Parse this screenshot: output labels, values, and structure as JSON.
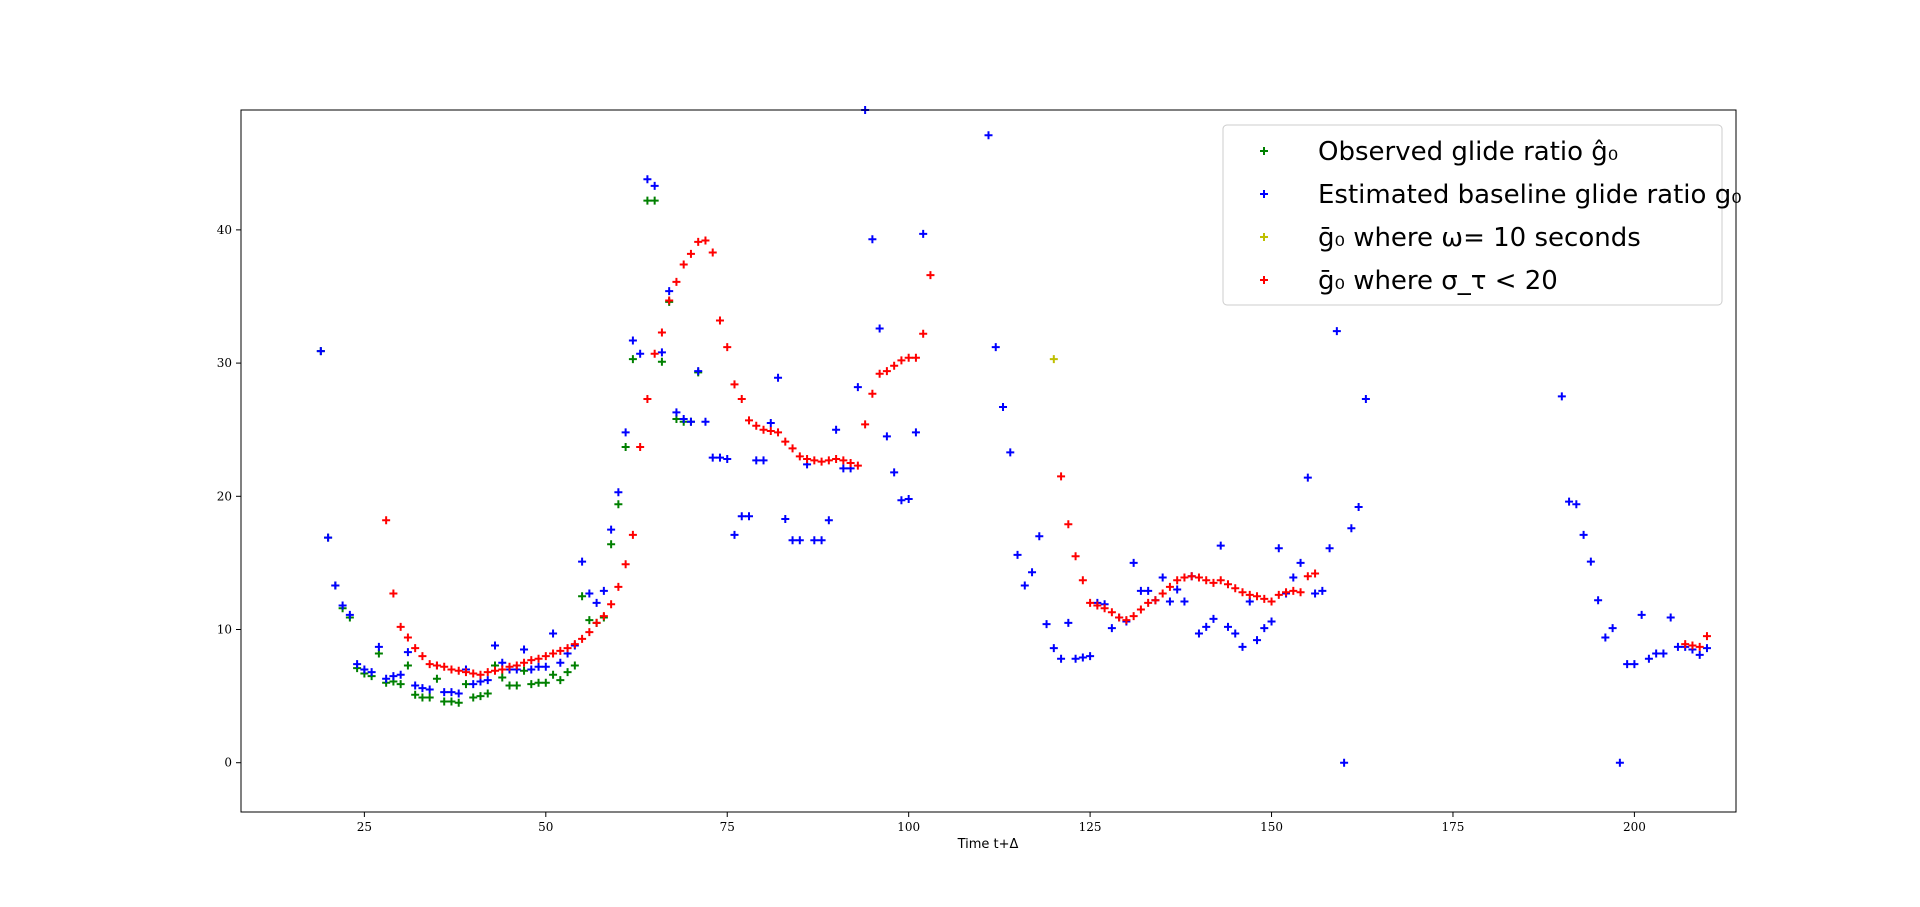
{
  "chart_data": {
    "type": "scatter",
    "title": "",
    "xlabel": "Time t+Δ",
    "ylabel": "",
    "xlim": [
      8,
      214
    ],
    "ylim": [
      -3.7,
      49
    ],
    "xticks": [
      25,
      50,
      75,
      100,
      125,
      150,
      175,
      200
    ],
    "yticks": [
      0,
      10,
      20,
      30,
      40
    ],
    "grid": false,
    "legend_position": "top-right",
    "marker": "+",
    "series": [
      {
        "name": "Observed glide ratio ĝ₀",
        "color": "#008000",
        "points": [
          [
            19,
            30.9
          ],
          [
            20,
            16.9
          ],
          [
            21,
            13.3
          ],
          [
            22,
            11.6
          ],
          [
            23,
            10.9
          ],
          [
            24,
            7.1
          ],
          [
            25,
            6.7
          ],
          [
            26,
            6.5
          ],
          [
            27,
            8.2
          ],
          [
            28,
            6.0
          ],
          [
            29,
            6.1
          ],
          [
            30,
            5.9
          ],
          [
            31,
            7.3
          ],
          [
            32,
            5.1
          ],
          [
            33,
            4.9
          ],
          [
            34,
            4.9
          ],
          [
            35,
            6.3
          ],
          [
            36,
            4.6
          ],
          [
            37,
            4.6
          ],
          [
            38,
            4.5
          ],
          [
            39,
            5.9
          ],
          [
            40,
            4.9
          ],
          [
            41,
            5.0
          ],
          [
            42,
            5.2
          ],
          [
            43,
            7.3
          ],
          [
            44,
            6.4
          ],
          [
            45,
            5.8
          ],
          [
            46,
            5.8
          ],
          [
            47,
            6.9
          ],
          [
            48,
            5.9
          ],
          [
            49,
            6.0
          ],
          [
            50,
            6.0
          ],
          [
            51,
            6.6
          ],
          [
            52,
            6.2
          ],
          [
            53,
            6.8
          ],
          [
            54,
            7.3
          ],
          [
            55,
            12.5
          ],
          [
            56,
            10.7
          ],
          [
            57,
            10.5
          ],
          [
            58,
            10.9
          ],
          [
            59,
            16.4
          ],
          [
            60,
            19.4
          ],
          [
            61,
            23.7
          ],
          [
            62,
            30.3
          ],
          [
            64,
            42.2
          ],
          [
            65,
            42.2
          ],
          [
            66,
            30.1
          ],
          [
            67,
            34.6
          ],
          [
            68,
            25.8
          ],
          [
            69,
            25.6
          ],
          [
            70,
            25.6
          ],
          [
            71,
            29.3
          ]
        ]
      },
      {
        "name": "Estimated baseline glide ratio g₀",
        "color": "#0000ff",
        "points": [
          [
            19,
            30.9
          ],
          [
            20,
            16.9
          ],
          [
            21,
            13.3
          ],
          [
            22,
            11.8
          ],
          [
            23,
            11.1
          ],
          [
            24,
            7.4
          ],
          [
            25,
            7.0
          ],
          [
            26,
            6.8
          ],
          [
            27,
            8.7
          ],
          [
            28,
            6.3
          ],
          [
            29,
            6.5
          ],
          [
            30,
            6.6
          ],
          [
            31,
            8.3
          ],
          [
            32,
            5.8
          ],
          [
            33,
            5.6
          ],
          [
            34,
            5.5
          ],
          [
            35,
            7.3
          ],
          [
            36,
            5.3
          ],
          [
            37,
            5.3
          ],
          [
            38,
            5.2
          ],
          [
            39,
            7.0
          ],
          [
            40,
            5.9
          ],
          [
            41,
            6.1
          ],
          [
            42,
            6.2
          ],
          [
            43,
            8.8
          ],
          [
            44,
            7.5
          ],
          [
            45,
            7.0
          ],
          [
            46,
            7.0
          ],
          [
            47,
            8.5
          ],
          [
            48,
            7.0
          ],
          [
            49,
            7.2
          ],
          [
            50,
            7.2
          ],
          [
            51,
            9.7
          ],
          [
            52,
            7.5
          ],
          [
            53,
            8.2
          ],
          [
            54,
            8.8
          ],
          [
            55,
            15.1
          ],
          [
            56,
            12.7
          ],
          [
            57,
            12.0
          ],
          [
            58,
            12.9
          ],
          [
            59,
            17.5
          ],
          [
            60,
            20.3
          ],
          [
            61,
            24.8
          ],
          [
            62,
            31.7
          ],
          [
            63,
            30.7
          ],
          [
            64,
            43.8
          ],
          [
            65,
            43.3
          ],
          [
            66,
            30.8
          ],
          [
            67,
            35.4
          ],
          [
            68,
            26.3
          ],
          [
            69,
            25.8
          ],
          [
            70,
            25.6
          ],
          [
            71,
            29.4
          ],
          [
            72,
            25.6
          ],
          [
            73,
            22.9
          ],
          [
            74,
            22.9
          ],
          [
            75,
            22.8
          ],
          [
            76,
            17.1
          ],
          [
            77,
            18.5
          ],
          [
            78,
            18.5
          ],
          [
            79,
            22.7
          ],
          [
            80,
            22.7
          ],
          [
            81,
            25.5
          ],
          [
            82,
            28.9
          ],
          [
            83,
            18.3
          ],
          [
            84,
            16.7
          ],
          [
            85,
            16.7
          ],
          [
            86,
            22.4
          ],
          [
            87,
            16.7
          ],
          [
            88,
            16.7
          ],
          [
            89,
            18.2
          ],
          [
            90,
            25.0
          ],
          [
            91,
            22.1
          ],
          [
            92,
            22.1
          ],
          [
            93,
            28.2
          ],
          [
            94,
            49.0
          ],
          [
            95,
            39.3
          ],
          [
            96,
            32.6
          ],
          [
            97,
            24.5
          ],
          [
            98,
            21.8
          ],
          [
            99,
            19.7
          ],
          [
            100,
            19.8
          ],
          [
            101,
            24.8
          ],
          [
            102,
            39.7
          ],
          [
            111,
            47.1
          ],
          [
            112,
            31.2
          ],
          [
            113,
            26.7
          ],
          [
            114,
            23.3
          ],
          [
            115,
            15.6
          ],
          [
            116,
            13.3
          ],
          [
            117,
            14.3
          ],
          [
            118,
            17.0
          ],
          [
            119,
            10.4
          ],
          [
            120,
            8.6
          ],
          [
            121,
            7.8
          ],
          [
            122,
            10.5
          ],
          [
            123,
            7.8
          ],
          [
            124,
            7.9
          ],
          [
            125,
            8.0
          ],
          [
            126,
            12.0
          ],
          [
            127,
            11.9
          ],
          [
            128,
            10.1
          ],
          [
            129,
            10.9
          ],
          [
            130,
            10.6
          ],
          [
            131,
            15.0
          ],
          [
            132,
            12.9
          ],
          [
            133,
            12.9
          ],
          [
            134,
            12.2
          ],
          [
            135,
            13.9
          ],
          [
            136,
            12.1
          ],
          [
            137,
            13.0
          ],
          [
            138,
            12.1
          ],
          [
            139,
            14.0
          ],
          [
            140,
            9.7
          ],
          [
            141,
            10.2
          ],
          [
            142,
            10.8
          ],
          [
            143,
            16.3
          ],
          [
            144,
            10.2
          ],
          [
            145,
            9.7
          ],
          [
            146,
            8.7
          ],
          [
            147,
            12.1
          ],
          [
            148,
            9.2
          ],
          [
            149,
            10.1
          ],
          [
            150,
            10.6
          ],
          [
            151,
            16.1
          ],
          [
            152,
            12.7
          ],
          [
            153,
            13.9
          ],
          [
            154,
            15.0
          ],
          [
            155,
            21.4
          ],
          [
            156,
            12.7
          ],
          [
            157,
            12.9
          ],
          [
            158,
            16.1
          ],
          [
            159,
            32.4
          ],
          [
            160,
            0.0
          ],
          [
            161,
            17.6
          ],
          [
            162,
            19.2
          ],
          [
            163,
            27.3
          ],
          [
            190,
            27.5
          ],
          [
            191,
            19.6
          ],
          [
            192,
            19.4
          ],
          [
            193,
            17.1
          ],
          [
            194,
            15.1
          ],
          [
            195,
            12.2
          ],
          [
            196,
            9.4
          ],
          [
            197,
            10.1
          ],
          [
            198,
            0.0
          ],
          [
            199,
            7.4
          ],
          [
            200,
            7.4
          ],
          [
            201,
            11.1
          ],
          [
            202,
            7.8
          ],
          [
            203,
            8.2
          ],
          [
            204,
            8.2
          ],
          [
            205,
            10.9
          ],
          [
            206,
            8.7
          ],
          [
            207,
            8.7
          ],
          [
            208,
            8.5
          ],
          [
            209,
            8.1
          ],
          [
            210,
            8.6
          ]
        ]
      },
      {
        "name": "ḡ₀ where ω= 10 seconds",
        "color": "#bfbf00",
        "points": [
          [
            120,
            30.3
          ]
        ]
      },
      {
        "name": "ḡ₀ where σ_τ < 20",
        "color": "#ff0000",
        "points": [
          [
            28,
            18.2
          ],
          [
            29,
            12.7
          ],
          [
            30,
            10.2
          ],
          [
            31,
            9.4
          ],
          [
            32,
            8.6
          ],
          [
            33,
            8.0
          ],
          [
            34,
            7.4
          ],
          [
            35,
            7.3
          ],
          [
            36,
            7.2
          ],
          [
            37,
            7.0
          ],
          [
            38,
            6.9
          ],
          [
            39,
            6.8
          ],
          [
            40,
            6.7
          ],
          [
            41,
            6.6
          ],
          [
            42,
            6.8
          ],
          [
            43,
            6.9
          ],
          [
            44,
            7.0
          ],
          [
            45,
            7.2
          ],
          [
            46,
            7.3
          ],
          [
            47,
            7.5
          ],
          [
            48,
            7.7
          ],
          [
            49,
            7.8
          ],
          [
            50,
            8.0
          ],
          [
            51,
            8.2
          ],
          [
            52,
            8.4
          ],
          [
            53,
            8.6
          ],
          [
            54,
            8.9
          ],
          [
            55,
            9.3
          ],
          [
            56,
            9.8
          ],
          [
            57,
            10.5
          ],
          [
            58,
            11.0
          ],
          [
            59,
            11.9
          ],
          [
            60,
            13.2
          ],
          [
            61,
            14.9
          ],
          [
            62,
            17.1
          ],
          [
            63,
            23.7
          ],
          [
            64,
            27.3
          ],
          [
            65,
            30.7
          ],
          [
            66,
            32.3
          ],
          [
            67,
            34.7
          ],
          [
            68,
            36.1
          ],
          [
            69,
            37.4
          ],
          [
            70,
            38.2
          ],
          [
            71,
            39.1
          ],
          [
            72,
            39.2
          ],
          [
            73,
            38.3
          ],
          [
            74,
            33.2
          ],
          [
            75,
            31.2
          ],
          [
            76,
            28.4
          ],
          [
            77,
            27.3
          ],
          [
            78,
            25.7
          ],
          [
            79,
            25.3
          ],
          [
            80,
            25.0
          ],
          [
            81,
            24.9
          ],
          [
            82,
            24.8
          ],
          [
            83,
            24.1
          ],
          [
            84,
            23.6
          ],
          [
            85,
            23.0
          ],
          [
            86,
            22.8
          ],
          [
            87,
            22.7
          ],
          [
            88,
            22.6
          ],
          [
            89,
            22.7
          ],
          [
            90,
            22.8
          ],
          [
            91,
            22.7
          ],
          [
            92,
            22.5
          ],
          [
            93,
            22.3
          ],
          [
            94,
            25.4
          ],
          [
            95,
            27.7
          ],
          [
            96,
            29.2
          ],
          [
            97,
            29.4
          ],
          [
            98,
            29.8
          ],
          [
            99,
            30.2
          ],
          [
            100,
            30.4
          ],
          [
            101,
            30.4
          ],
          [
            102,
            32.2
          ],
          [
            103,
            36.6
          ],
          [
            121,
            21.5
          ],
          [
            122,
            17.9
          ],
          [
            123,
            15.5
          ],
          [
            124,
            13.7
          ],
          [
            125,
            12.0
          ],
          [
            126,
            11.8
          ],
          [
            127,
            11.6
          ],
          [
            128,
            11.3
          ],
          [
            129,
            10.9
          ],
          [
            130,
            10.7
          ],
          [
            131,
            11.0
          ],
          [
            132,
            11.5
          ],
          [
            133,
            12.0
          ],
          [
            134,
            12.2
          ],
          [
            135,
            12.7
          ],
          [
            136,
            13.2
          ],
          [
            137,
            13.7
          ],
          [
            138,
            13.9
          ],
          [
            139,
            14.0
          ],
          [
            140,
            13.9
          ],
          [
            141,
            13.7
          ],
          [
            142,
            13.5
          ],
          [
            143,
            13.7
          ],
          [
            144,
            13.4
          ],
          [
            145,
            13.1
          ],
          [
            146,
            12.8
          ],
          [
            147,
            12.6
          ],
          [
            148,
            12.5
          ],
          [
            149,
            12.3
          ],
          [
            150,
            12.1
          ],
          [
            151,
            12.6
          ],
          [
            152,
            12.8
          ],
          [
            153,
            12.9
          ],
          [
            154,
            12.8
          ],
          [
            155,
            14.0
          ],
          [
            156,
            14.2
          ],
          [
            207,
            8.9
          ],
          [
            208,
            8.8
          ],
          [
            209,
            8.7
          ],
          [
            210,
            9.5
          ]
        ]
      }
    ]
  }
}
